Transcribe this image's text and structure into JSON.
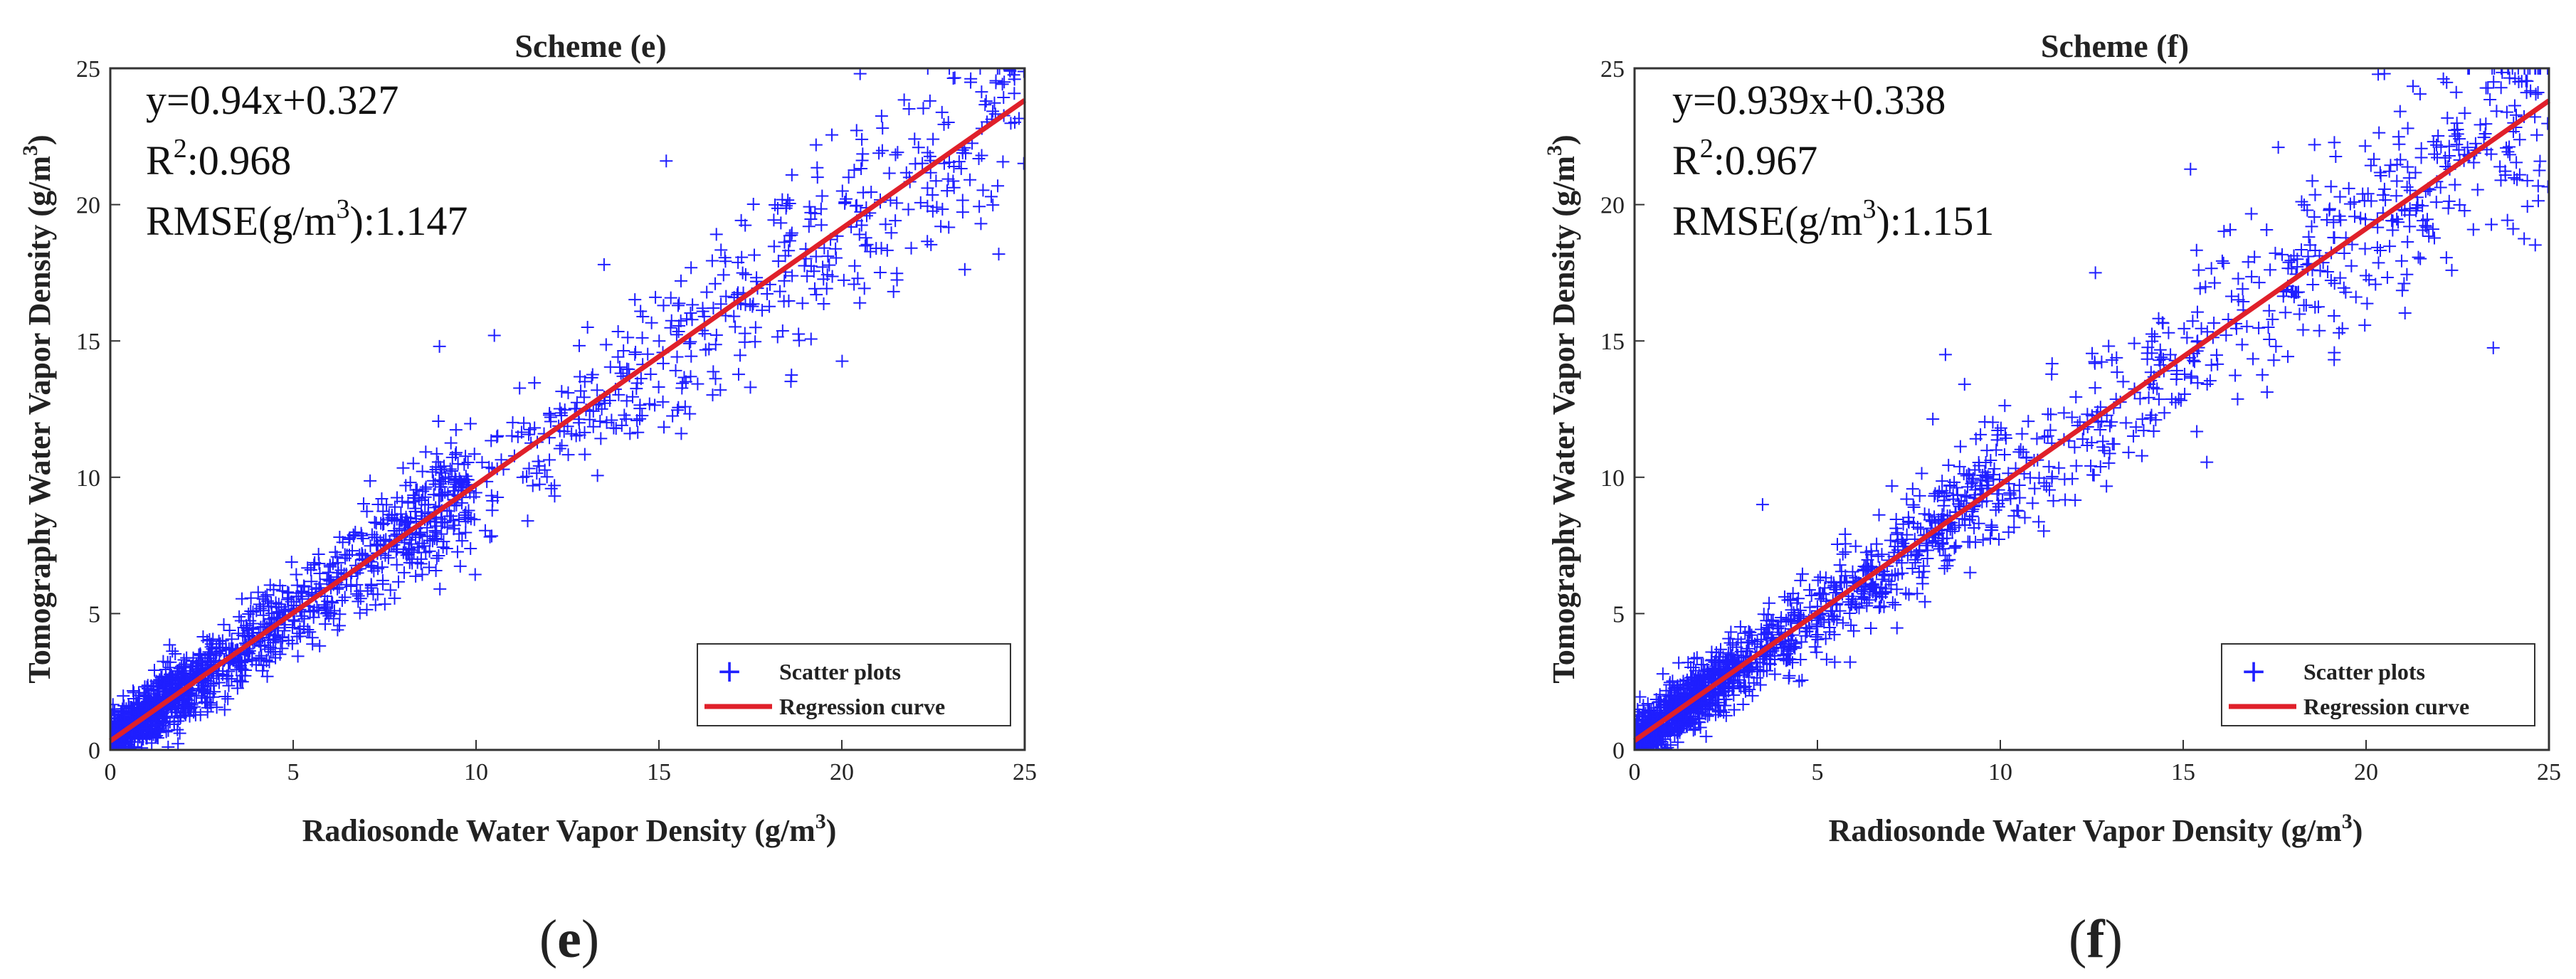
{
  "chart_data": [
    {
      "type": "scatter",
      "panel_label_open": "(",
      "panel_label_letter": "e",
      "panel_label_close": ")",
      "title": "Scheme (e)",
      "xlabel_main": "Radiosonde Water Vapor Density (g/m",
      "xlabel_sup": "3",
      "xlabel_close": ")",
      "ylabel_main": "Tomography Water Vapor Density (g/m",
      "ylabel_sup": "3",
      "ylabel_close": ")",
      "xlim": [
        0,
        25
      ],
      "ylim": [
        0,
        25
      ],
      "xticks": [
        0,
        5,
        10,
        15,
        20,
        25
      ],
      "yticks": [
        0,
        5,
        10,
        15,
        20,
        25
      ],
      "annotations": {
        "equation": "y=0.94x+0.327",
        "r2_prefix": "R",
        "r2_sup": "2",
        "r2_value": ":0.968",
        "rmse_prefix": "RMSE(g/m",
        "rmse_sup": "3",
        "rmse_value": "):1.147"
      },
      "regression": {
        "slope": 0.94,
        "intercept": 0.327
      },
      "legend": [
        "Scatter plots",
        "Regression curve"
      ],
      "legend_position": "bottom-right",
      "series": [
        {
          "name": "Scatter plots",
          "marker": "+",
          "color": "#1f1fff",
          "n_points": 1800,
          "seed": 11,
          "sample_points": [
            [
              0.3,
              0.8
            ],
            [
              1.2,
              1.9
            ],
            [
              2.5,
              2.9
            ],
            [
              3.8,
              4.2
            ],
            [
              5,
              5.1
            ],
            [
              7.4,
              7.2
            ],
            [
              9,
              14.8
            ],
            [
              10.5,
              15.2
            ],
            [
              13.5,
              17.8
            ],
            [
              15.2,
              21.6
            ],
            [
              17.5,
              13.3
            ],
            [
              20.5,
              24.8
            ],
            [
              24.6,
              24.9
            ]
          ]
        }
      ],
      "regression_color": "#e0202a"
    },
    {
      "type": "scatter",
      "panel_label_open": "(",
      "panel_label_letter": "f",
      "panel_label_close": ")",
      "title": "Scheme (f)",
      "xlabel_main": "Radiosonde Water Vapor Density (g/m",
      "xlabel_sup": "3",
      "xlabel_close": ")",
      "ylabel_main": "Tomography Water Vapor Density (g/m",
      "ylabel_sup": "3",
      "ylabel_close": ")",
      "xlim": [
        0,
        25
      ],
      "ylim": [
        0,
        25
      ],
      "xticks": [
        0,
        5,
        10,
        15,
        20,
        25
      ],
      "yticks": [
        0,
        5,
        10,
        15,
        20,
        25
      ],
      "annotations": {
        "equation": "y=0.939x+0.338",
        "r2_prefix": "R",
        "r2_sup": "2",
        "r2_value": ":0.967",
        "rmse_prefix": "RMSE(g/m",
        "rmse_sup": "3",
        "rmse_value": "):1.151"
      },
      "regression": {
        "slope": 0.939,
        "intercept": 0.338
      },
      "legend": [
        "Scatter plots",
        "Regression curve"
      ],
      "legend_position": "bottom-right",
      "series": [
        {
          "name": "Scatter plots",
          "marker": "+",
          "color": "#1f1fff",
          "n_points": 1800,
          "seed": 29,
          "sample_points": [
            [
              0.3,
              0.8
            ],
            [
              1.1,
              2.1
            ],
            [
              2.6,
              3.0
            ],
            [
              3.5,
              9.0
            ],
            [
              5,
              5.1
            ],
            [
              8.5,
              14.5
            ],
            [
              12.6,
              17.5
            ],
            [
              15.2,
              21.3
            ],
            [
              17.6,
              22.1
            ],
            [
              20.5,
              24.8
            ],
            [
              24.7,
              25.0
            ]
          ]
        }
      ],
      "regression_color": "#e0202a"
    }
  ]
}
